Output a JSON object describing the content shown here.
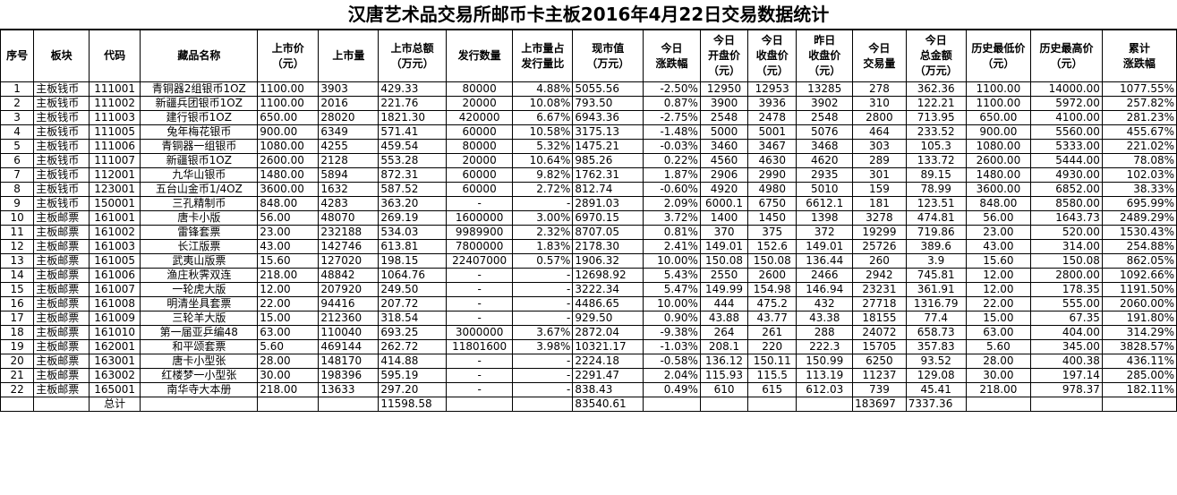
{
  "title": "汉唐艺术品交易所邮币卡主板2016年4月22日交易数据统计",
  "headers": [
    [
      "序号"
    ],
    [
      "板块"
    ],
    [
      "代码"
    ],
    [
      "藏品名称"
    ],
    [
      "上市价",
      "（元）"
    ],
    [
      "上市量"
    ],
    [
      "上市总额",
      "（万元）"
    ],
    [
      "发行数量"
    ],
    [
      "上市量占",
      "发行量比"
    ],
    [
      "现市值",
      "（万元）"
    ],
    [
      "今日",
      "涨跌幅"
    ],
    [
      "今日",
      "开盘价",
      "（元）"
    ],
    [
      "今日",
      "收盘价",
      "（元）"
    ],
    [
      "昨日",
      "收盘价",
      "（元）"
    ],
    [
      "今日",
      "交易量"
    ],
    [
      "今日",
      "总金额",
      "（万元）"
    ],
    [
      "历史最低价",
      "（元）"
    ],
    [
      "历史最高价",
      "（元）"
    ],
    [
      "累计",
      "涨跌幅"
    ]
  ],
  "rows": [
    [
      "1",
      "主板钱币",
      "111001",
      "青铜器2组银币1OZ",
      "1100.00",
      "3903",
      "429.33",
      "80000",
      "4.88%",
      "5055.56",
      "-2.50%",
      "12950",
      "12953",
      "13285",
      "278",
      "362.36",
      "1100.00",
      "14000.00",
      "1077.55%"
    ],
    [
      "2",
      "主板钱币",
      "111002",
      "新疆兵团银币1OZ",
      "1100.00",
      "2016",
      "221.76",
      "20000",
      "10.08%",
      "793.50",
      "0.87%",
      "3900",
      "3936",
      "3902",
      "310",
      "122.21",
      "1100.00",
      "5972.00",
      "257.82%"
    ],
    [
      "3",
      "主板钱币",
      "111003",
      "建行银币1OZ",
      "650.00",
      "28020",
      "1821.30",
      "420000",
      "6.67%",
      "6943.36",
      "-2.75%",
      "2548",
      "2478",
      "2548",
      "2800",
      "713.95",
      "650.00",
      "4100.00",
      "281.23%"
    ],
    [
      "4",
      "主板钱币",
      "111005",
      "兔年梅花银币",
      "900.00",
      "6349",
      "571.41",
      "60000",
      "10.58%",
      "3175.13",
      "-1.48%",
      "5000",
      "5001",
      "5076",
      "464",
      "233.52",
      "900.00",
      "5560.00",
      "455.67%"
    ],
    [
      "5",
      "主板钱币",
      "111006",
      "青铜器一组银币",
      "1080.00",
      "4255",
      "459.54",
      "80000",
      "5.32%",
      "1475.21",
      "-0.03%",
      "3460",
      "3467",
      "3468",
      "303",
      "105.3",
      "1080.00",
      "5333.00",
      "221.02%"
    ],
    [
      "6",
      "主板钱币",
      "111007",
      "新疆银币1OZ",
      "2600.00",
      "2128",
      "553.28",
      "20000",
      "10.64%",
      "985.26",
      "0.22%",
      "4560",
      "4630",
      "4620",
      "289",
      "133.72",
      "2600.00",
      "5444.00",
      "78.08%"
    ],
    [
      "7",
      "主板钱币",
      "112001",
      "九华山银币",
      "1480.00",
      "5894",
      "872.31",
      "60000",
      "9.82%",
      "1762.31",
      "1.87%",
      "2906",
      "2990",
      "2935",
      "301",
      "89.15",
      "1480.00",
      "4930.00",
      "102.03%"
    ],
    [
      "8",
      "主板钱币",
      "123001",
      "五台山金币1/4OZ",
      "3600.00",
      "1632",
      "587.52",
      "60000",
      "2.72%",
      "812.74",
      "-0.60%",
      "4920",
      "4980",
      "5010",
      "159",
      "78.99",
      "3600.00",
      "6852.00",
      "38.33%"
    ],
    [
      "9",
      "主板钱币",
      "150001",
      "三孔精制币",
      "848.00",
      "4283",
      "363.20",
      "-",
      "-",
      "2891.03",
      "2.09%",
      "6000.1",
      "6750",
      "6612.1",
      "181",
      "123.51",
      "848.00",
      "8580.00",
      "695.99%"
    ],
    [
      "10",
      "主板邮票",
      "161001",
      "唐卡小版",
      "56.00",
      "48070",
      "269.19",
      "1600000",
      "3.00%",
      "6970.15",
      "3.72%",
      "1400",
      "1450",
      "1398",
      "3278",
      "474.81",
      "56.00",
      "1643.73",
      "2489.29%"
    ],
    [
      "11",
      "主板邮票",
      "161002",
      "雷锋套票",
      "23.00",
      "232188",
      "534.03",
      "9989900",
      "2.32%",
      "8707.05",
      "0.81%",
      "370",
      "375",
      "372",
      "19299",
      "719.86",
      "23.00",
      "520.00",
      "1530.43%"
    ],
    [
      "12",
      "主板邮票",
      "161003",
      "长江版票",
      "43.00",
      "142746",
      "613.81",
      "7800000",
      "1.83%",
      "2178.30",
      "2.41%",
      "149.01",
      "152.6",
      "149.01",
      "25726",
      "389.6",
      "43.00",
      "314.00",
      "254.88%"
    ],
    [
      "13",
      "主板邮票",
      "161005",
      "武夷山版票",
      "15.60",
      "127020",
      "198.15",
      "22407000",
      "0.57%",
      "1906.32",
      "10.00%",
      "150.08",
      "150.08",
      "136.44",
      "260",
      "3.9",
      "15.60",
      "150.08",
      "862.05%"
    ],
    [
      "14",
      "主板邮票",
      "161006",
      "渔庄秋霁双连",
      "218.00",
      "48842",
      "1064.76",
      "-",
      "-",
      "12698.92",
      "5.43%",
      "2550",
      "2600",
      "2466",
      "2942",
      "745.81",
      "12.00",
      "2800.00",
      "1092.66%"
    ],
    [
      "15",
      "主板邮票",
      "161007",
      "一轮虎大版",
      "12.00",
      "207920",
      "249.50",
      "-",
      "-",
      "3222.34",
      "5.47%",
      "149.99",
      "154.98",
      "146.94",
      "23231",
      "361.91",
      "12.00",
      "178.35",
      "1191.50%"
    ],
    [
      "16",
      "主板邮票",
      "161008",
      "明清坐具套票",
      "22.00",
      "94416",
      "207.72",
      "-",
      "-",
      "4486.65",
      "10.00%",
      "444",
      "475.2",
      "432",
      "27718",
      "1316.79",
      "22.00",
      "555.00",
      "2060.00%"
    ],
    [
      "17",
      "主板邮票",
      "161009",
      "三轮羊大版",
      "15.00",
      "212360",
      "318.54",
      "-",
      "-",
      "929.50",
      "0.90%",
      "43.88",
      "43.77",
      "43.38",
      "18155",
      "77.4",
      "15.00",
      "67.35",
      "191.80%"
    ],
    [
      "18",
      "主板邮票",
      "161010",
      "第一届亚乒编48",
      "63.00",
      "110040",
      "693.25",
      "3000000",
      "3.67%",
      "2872.04",
      "-9.38%",
      "264",
      "261",
      "288",
      "24072",
      "658.73",
      "63.00",
      "404.00",
      "314.29%"
    ],
    [
      "19",
      "主板邮票",
      "162001",
      "和平颂套票",
      "5.60",
      "469144",
      "262.72",
      "11801600",
      "3.98%",
      "10321.17",
      "-1.03%",
      "208.1",
      "220",
      "222.3",
      "15705",
      "357.83",
      "5.60",
      "345.00",
      "3828.57%"
    ],
    [
      "20",
      "主板邮票",
      "163001",
      "唐卡小型张",
      "28.00",
      "148170",
      "414.88",
      "-",
      "-",
      "2224.18",
      "-0.58%",
      "136.12",
      "150.11",
      "150.99",
      "6250",
      "93.52",
      "28.00",
      "400.38",
      "436.11%"
    ],
    [
      "21",
      "主板邮票",
      "163002",
      "红楼梦一小型张",
      "30.00",
      "198396",
      "595.19",
      "-",
      "-",
      "2291.47",
      "2.04%",
      "115.93",
      "115.5",
      "113.19",
      "11237",
      "129.08",
      "30.00",
      "197.14",
      "285.00%"
    ],
    [
      "22",
      "主板邮票",
      "165001",
      "南华寺大本册",
      "218.00",
      "13633",
      "297.20",
      "-",
      "-",
      "838.43",
      "0.49%",
      "610",
      "615",
      "612.03",
      "739",
      "45.41",
      "218.00",
      "978.37",
      "182.11%"
    ]
  ],
  "total": {
    "label": "总计",
    "listing_total": "11598.58",
    "market_value": "83540.61",
    "volume": "183697",
    "amount": "7337.36"
  }
}
